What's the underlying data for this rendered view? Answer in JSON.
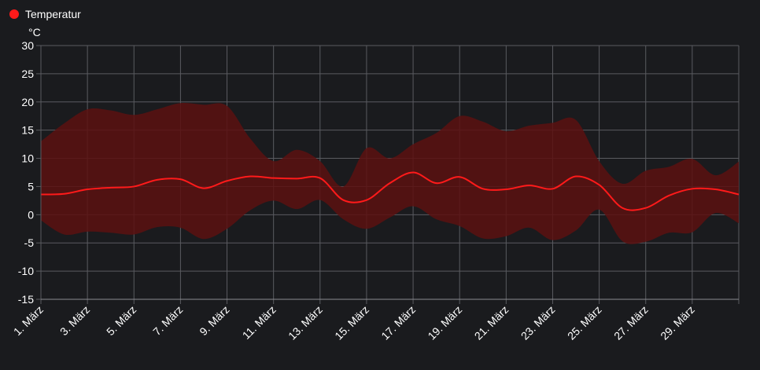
{
  "chart_data": {
    "type": "area",
    "title": "",
    "xlabel": "",
    "ylabel": "°C",
    "ylim": [
      -15,
      30
    ],
    "yticks": [
      30,
      25,
      20,
      15,
      10,
      5,
      0,
      -5,
      -10,
      -15
    ],
    "grid": true,
    "legend": "top-left",
    "colors": {
      "series": "#ff1a1a",
      "band": "#5c1111",
      "background": "#1a1b1e",
      "grid": "#5a5b60",
      "text": "#ffffff"
    },
    "x_days": [
      1,
      2,
      3,
      4,
      5,
      6,
      7,
      8,
      9,
      10,
      11,
      12,
      13,
      14,
      15,
      16,
      17,
      18,
      19,
      20,
      21,
      22,
      23,
      24,
      25,
      26,
      27,
      28,
      29,
      30,
      31
    ],
    "x_tick_labels": [
      "1. März",
      "3. März",
      "5. März",
      "7. März",
      "9. März",
      "11. März",
      "13. März",
      "15. März",
      "17. März",
      "19. März",
      "21. März",
      "23. März",
      "25. März",
      "27. März",
      "29. März"
    ],
    "series": [
      {
        "name": "Temperatur",
        "values": [
          3.6,
          3.7,
          4.5,
          4.8,
          5.0,
          6.2,
          6.3,
          4.7,
          6.0,
          6.8,
          6.5,
          6.4,
          6.5,
          2.6,
          2.6,
          5.6,
          7.5,
          5.6,
          6.7,
          4.6,
          4.5,
          5.2,
          4.6,
          6.8,
          5.3,
          1.2,
          1.2,
          3.4,
          4.6,
          4.5,
          3.6
        ],
        "low": [
          -1.0,
          -3.5,
          -3.0,
          -3.2,
          -3.5,
          -2.2,
          -2.3,
          -4.3,
          -2.5,
          0.8,
          2.5,
          1.0,
          2.6,
          -0.8,
          -2.5,
          -0.5,
          1.5,
          -0.8,
          -2.0,
          -4.2,
          -3.8,
          -2.3,
          -4.5,
          -2.8,
          0.9,
          -4.7,
          -4.8,
          -3.2,
          -3.1,
          0.3,
          -1.5
        ],
        "high": [
          13.0,
          16.2,
          18.7,
          18.5,
          17.7,
          18.7,
          19.8,
          19.5,
          19.3,
          13.5,
          9.5,
          11.5,
          9.5,
          5.0,
          11.8,
          10.0,
          12.5,
          14.5,
          17.5,
          16.5,
          14.8,
          15.8,
          16.3,
          16.8,
          9.5,
          5.5,
          7.8,
          8.5,
          9.9,
          7.0,
          9.4
        ]
      }
    ]
  }
}
